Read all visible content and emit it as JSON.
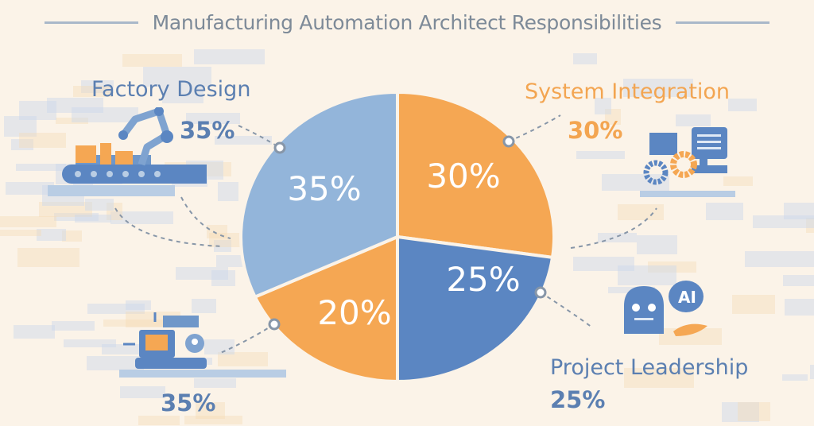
{
  "title": "Manufacturing Automation Architect Responsibilities",
  "colors": {
    "light_blue": "#93b5da",
    "orange": "#f5a753",
    "blue": "#5b86c2",
    "text_blue": "#5b7fb1",
    "text_orange": "#f3a551",
    "background": "#fbf3e8"
  },
  "callouts": [
    {
      "label": "Factory Design",
      "value": "35%",
      "icon": "robot-arm-conveyor-icon"
    },
    {
      "label": "System Integration",
      "value": "30%",
      "icon": "server-gears-icon"
    },
    {
      "label": "Project Leadership",
      "value": "25%",
      "icon": "ai-robot-icon"
    },
    {
      "label": "",
      "value": "35%",
      "icon": "computer-workstation-icon"
    }
  ],
  "chart_data": {
    "type": "pie",
    "title": "Manufacturing Automation Architect Responsibilities",
    "slices": [
      {
        "label": "30%",
        "value": 30,
        "color": "#f5a753"
      },
      {
        "label": "25%",
        "value": 25,
        "color": "#5b86c2"
      },
      {
        "label": "20%",
        "value": 20,
        "color": "#f5a753"
      },
      {
        "label": "35%",
        "value": 35,
        "color": "#93b5da"
      }
    ],
    "start": "12 o'clock",
    "direction": "clockwise",
    "legend": "none"
  }
}
